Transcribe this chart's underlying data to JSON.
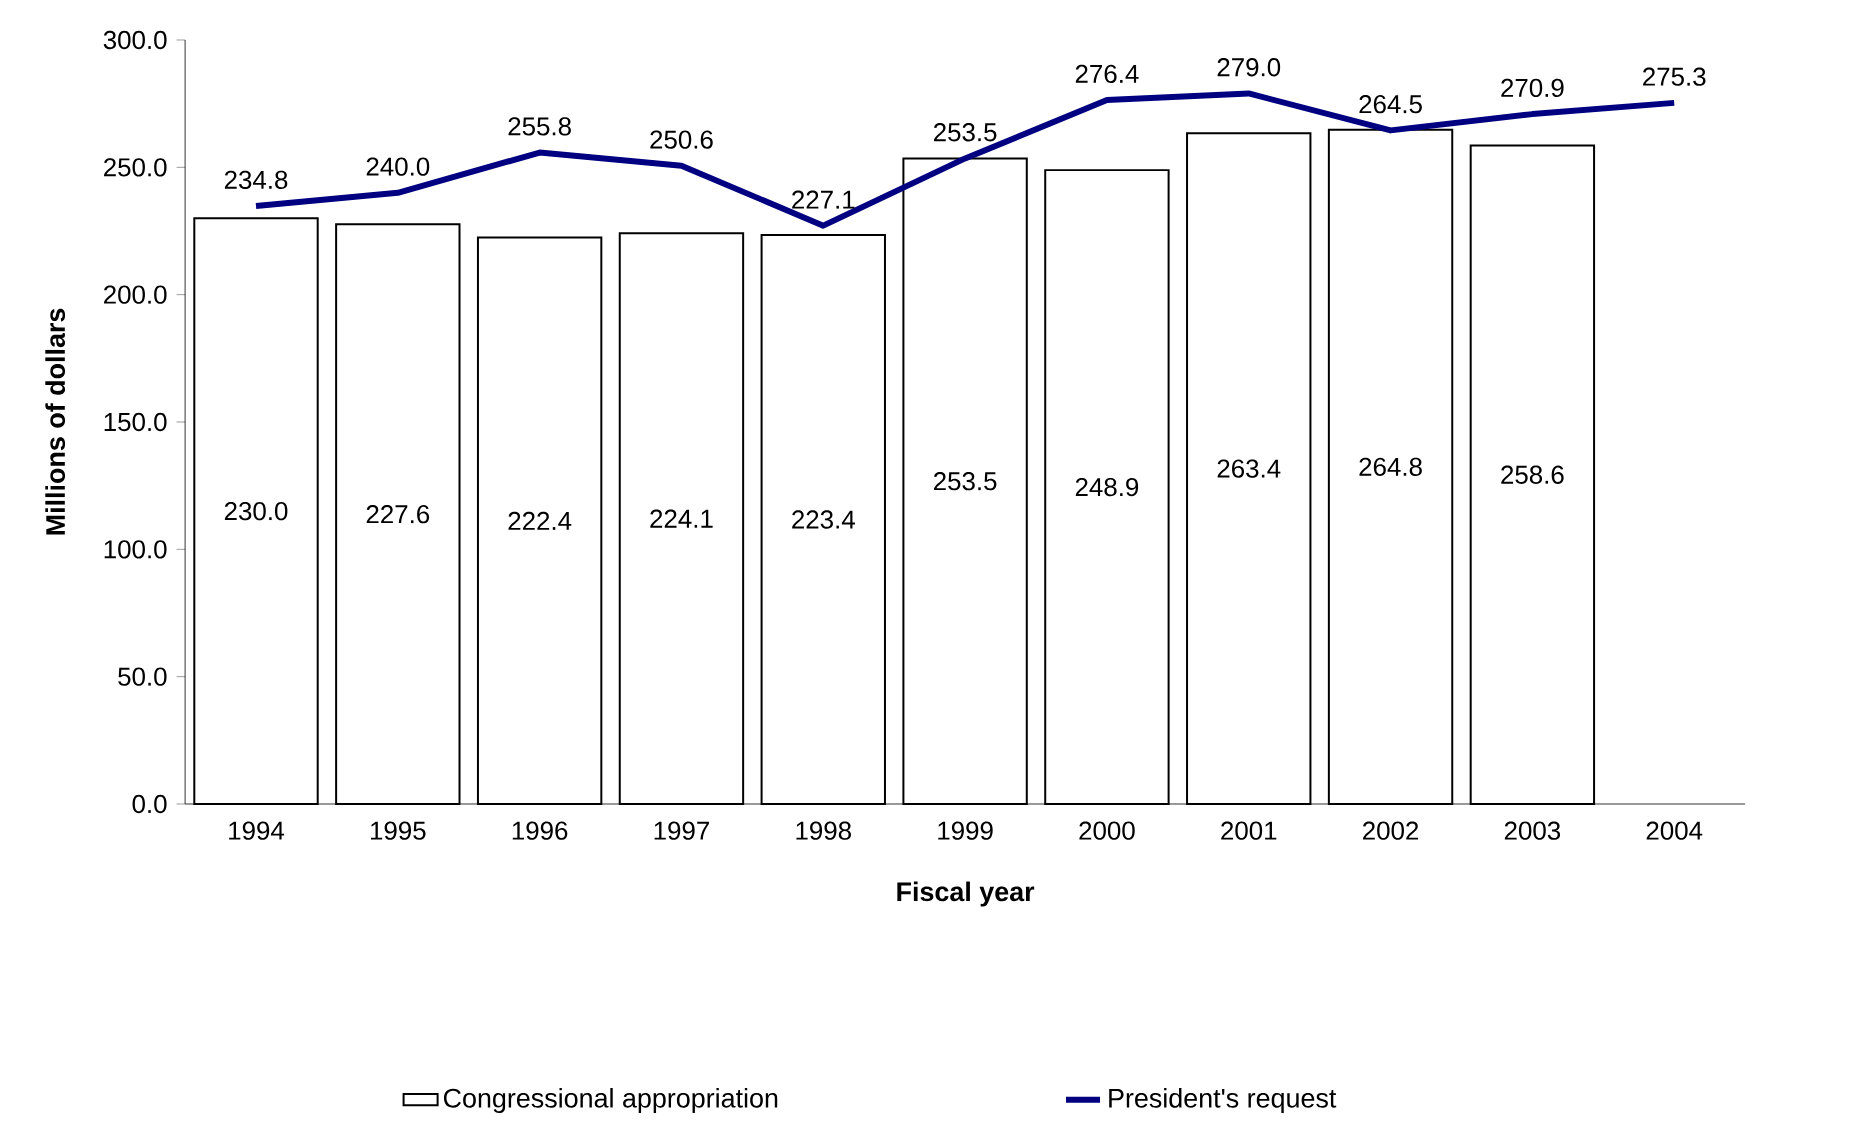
{
  "chart_data": {
    "type": "bar",
    "xlabel": "Fiscal year",
    "ylabel": "Millions of dollars",
    "categories": [
      "1994",
      "1995",
      "1996",
      "1997",
      "1998",
      "1999",
      "2000",
      "2001",
      "2002",
      "2003",
      "2004"
    ],
    "series": [
      {
        "name": "Congressional appropriation",
        "color": "#ffffff",
        "values": [
          230.0,
          227.6,
          222.4,
          224.1,
          223.4,
          253.5,
          248.9,
          263.4,
          264.8,
          258.6,
          null
        ],
        "value_labels": [
          "230.0",
          "227.6",
          "222.4",
          "224.1",
          "223.4",
          "253.5",
          "248.9",
          "263.4",
          "264.8",
          "258.6",
          null
        ]
      },
      {
        "name": "President's request",
        "type": "line",
        "color": "#000080",
        "values": [
          234.8,
          240.0,
          255.8,
          250.6,
          227.1,
          253.5,
          276.4,
          279.0,
          264.5,
          270.9,
          275.3
        ],
        "value_labels": [
          "234.8",
          "240.0",
          "255.8",
          "250.6",
          "227.1",
          "253.5",
          "276.4",
          "279.0",
          "264.5",
          "270.9",
          "275.3"
        ]
      }
    ],
    "ylim": [
      0,
      300
    ],
    "yticks": [
      {
        "value": 0,
        "label": "0.0"
      },
      {
        "value": 50,
        "label": "50.0"
      },
      {
        "value": 100,
        "label": "100.0"
      },
      {
        "value": 150,
        "label": "150.0"
      },
      {
        "value": 200,
        "label": "200.0"
      },
      {
        "value": 250,
        "label": "250.0"
      },
      {
        "value": 300,
        "label": "300.0"
      }
    ],
    "legend": "bottom"
  }
}
